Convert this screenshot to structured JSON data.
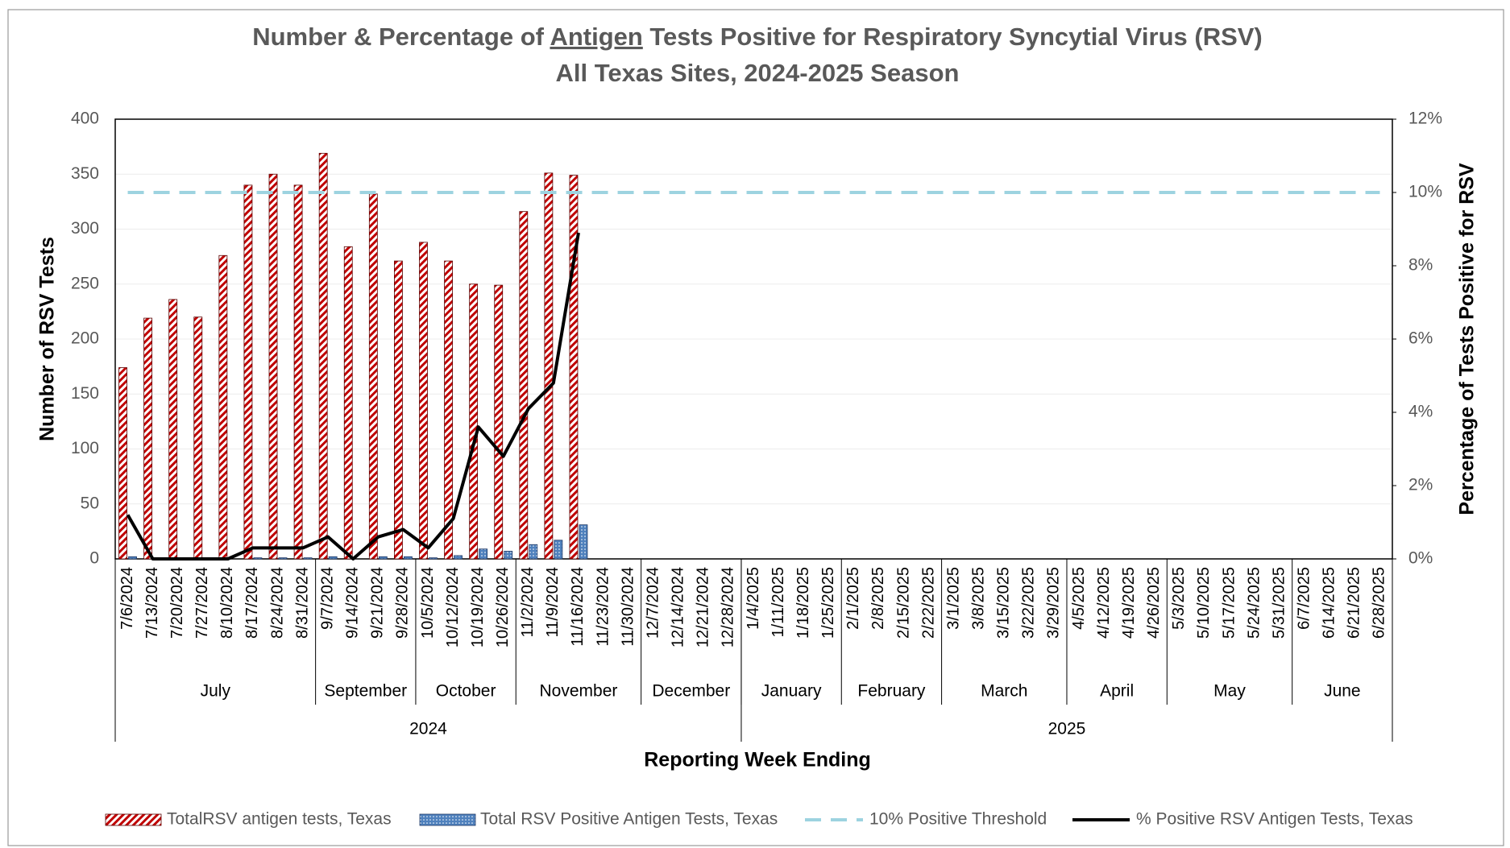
{
  "chart_data": {
    "type": "bar",
    "title": [
      "Number & Percentage of ",
      "Antigen",
      " Tests Positive for Respiratory Syncytial Virus (RSV)"
    ],
    "subtitle": "All Texas Sites, 2024-2025 Season",
    "x_label": "Reporting Week Ending",
    "y_label": "Number of RSV Tests",
    "y2_label": "Percentage of Tests Positive for RSV",
    "categories": [
      "7/6/2024",
      "7/13/2024",
      "7/20/2024",
      "7/27/2024",
      "8/10/2024",
      "8/17/2024",
      "8/24/2024",
      "8/31/2024",
      "9/7/2024",
      "9/14/2024",
      "9/21/2024",
      "9/28/2024",
      "10/5/2024",
      "10/12/2024",
      "10/19/2024",
      "10/26/2024",
      "11/2/2024",
      "11/9/2024",
      "11/16/2024",
      "11/23/2024",
      "11/30/2024",
      "12/7/2024",
      "12/14/2024",
      "12/21/2024",
      "12/28/2024",
      "1/4/2025",
      "1/11/2025",
      "1/18/2025",
      "1/25/2025",
      "2/1/2025",
      "2/8/2025",
      "2/15/2025",
      "2/22/2025",
      "3/1/2025",
      "3/8/2025",
      "3/15/2025",
      "3/22/2025",
      "3/29/2025",
      "4/5/2025",
      "4/12/2025",
      "4/19/2025",
      "4/26/2025",
      "5/3/2025",
      "5/10/2025",
      "5/17/2025",
      "5/24/2025",
      "5/31/2025",
      "6/7/2025",
      "6/14/2025",
      "6/21/2025",
      "6/28/2025"
    ],
    "months": [
      {
        "name": "July",
        "count": 8
      },
      {
        "name": "September",
        "count": 4
      },
      {
        "name": "October",
        "count": 4
      },
      {
        "name": "November",
        "count": 5
      },
      {
        "name": "December",
        "count": 4
      },
      {
        "name": "January",
        "count": 4
      },
      {
        "name": "February",
        "count": 4
      },
      {
        "name": "March",
        "count": 5
      },
      {
        "name": "April",
        "count": 4
      },
      {
        "name": "May",
        "count": 5
      },
      {
        "name": "June",
        "count": 4
      }
    ],
    "years": [
      {
        "name": "2024",
        "count": 25
      },
      {
        "name": "2025",
        "count": 26
      }
    ],
    "series": [
      {
        "name": "TotalRSV antigen tests, Texas",
        "type": "bar",
        "color": "#c00000",
        "values": [
          174,
          219,
          236,
          220,
          276,
          340,
          350,
          340,
          369,
          284,
          332,
          271,
          288,
          271,
          250,
          249,
          316,
          351,
          349,
          null,
          null,
          null,
          null,
          null,
          null,
          null,
          null,
          null,
          null,
          null,
          null,
          null,
          null,
          null,
          null,
          null,
          null,
          null,
          null,
          null,
          null,
          null,
          null,
          null,
          null,
          null,
          null,
          null,
          null,
          null,
          null
        ]
      },
      {
        "name": "Total RSV Positive Antigen Tests, Texas",
        "type": "bar",
        "color": "#4f81bd",
        "values": [
          2,
          0,
          0,
          0,
          0,
          1,
          1,
          1,
          2,
          0,
          2,
          2,
          1,
          3,
          9,
          7,
          13,
          17,
          31,
          null,
          null,
          null,
          null,
          null,
          null,
          null,
          null,
          null,
          null,
          null,
          null,
          null,
          null,
          null,
          null,
          null,
          null,
          null,
          null,
          null,
          null,
          null,
          null,
          null,
          null,
          null,
          null,
          null,
          null,
          null,
          null
        ]
      },
      {
        "name": "10% Positive Threshold",
        "type": "line",
        "axis": "y2",
        "color": "#9dd3e0",
        "dash": true,
        "values": [
          10,
          10,
          10,
          10,
          10,
          10,
          10,
          10,
          10,
          10,
          10,
          10,
          10,
          10,
          10,
          10,
          10,
          10,
          10,
          10,
          10,
          10,
          10,
          10,
          10,
          10,
          10,
          10,
          10,
          10,
          10,
          10,
          10,
          10,
          10,
          10,
          10,
          10,
          10,
          10,
          10,
          10,
          10,
          10,
          10,
          10,
          10,
          10,
          10,
          10,
          10
        ]
      },
      {
        "name": "% Positive RSV Antigen Tests, Texas",
        "type": "line",
        "axis": "y2",
        "color": "#000000",
        "values": [
          1.2,
          0,
          0,
          0,
          0,
          0.3,
          0.3,
          0.3,
          0.6,
          0,
          0.6,
          0.8,
          0.3,
          1.1,
          3.6,
          2.8,
          4.1,
          4.8,
          8.9,
          null,
          null,
          null,
          null,
          null,
          null,
          null,
          null,
          null,
          null,
          null,
          null,
          null,
          null,
          null,
          null,
          null,
          null,
          null,
          null,
          null,
          null,
          null,
          null,
          null,
          null,
          null,
          null,
          null,
          null,
          null,
          null
        ]
      }
    ],
    "ylim": [
      0,
      400
    ],
    "yticks": [
      0,
      50,
      100,
      150,
      200,
      250,
      300,
      350,
      400
    ],
    "y2lim": [
      0,
      12
    ],
    "y2ticks": [
      {
        "value": 0,
        "label": "0%"
      },
      {
        "value": 2,
        "label": "2%"
      },
      {
        "value": 4,
        "label": "4%"
      },
      {
        "value": 6,
        "label": "6%"
      },
      {
        "value": 8,
        "label": "8%"
      },
      {
        "value": 10,
        "label": "10%"
      },
      {
        "value": 12,
        "label": "12%"
      }
    ],
    "grid": true,
    "legend": "bottom"
  }
}
